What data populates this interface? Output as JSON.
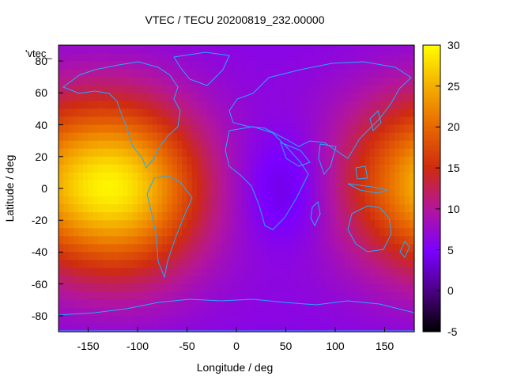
{
  "title": "VTEC / TECU 20200819_232.00000",
  "legend_label": "'vtec_",
  "chart_data": {
    "type": "heatmap",
    "title": "VTEC / TECU 20200819_232.00000",
    "xlabel": "Longitude / deg",
    "ylabel": "Latitude / deg",
    "xlim": [
      -180,
      180
    ],
    "ylim": [
      -90,
      90
    ],
    "x_ticks": [
      "-150",
      "-100",
      "-50",
      "0",
      "50",
      "100",
      "150"
    ],
    "y_ticks": [
      "80",
      "60",
      "40",
      "20",
      "0",
      "-20",
      "-40",
      "-60",
      "-80"
    ],
    "colorbar": {
      "range": [
        -5,
        30
      ],
      "ticks": [
        "30",
        "25",
        "20",
        "15",
        "10",
        "5",
        "0",
        "-5"
      ],
      "palette": "black-purple-red-orange-yellow"
    },
    "features": [
      {
        "name": "primary enhancement",
        "lon": -110,
        "lat": 0,
        "value": 25
      },
      {
        "name": "secondary enhancement",
        "lon": 170,
        "lat": 5,
        "value": 17
      },
      {
        "name": "minimum",
        "lon": 50,
        "lat": 0,
        "value": 3
      }
    ],
    "overlay": "coastlines",
    "grid": false
  }
}
